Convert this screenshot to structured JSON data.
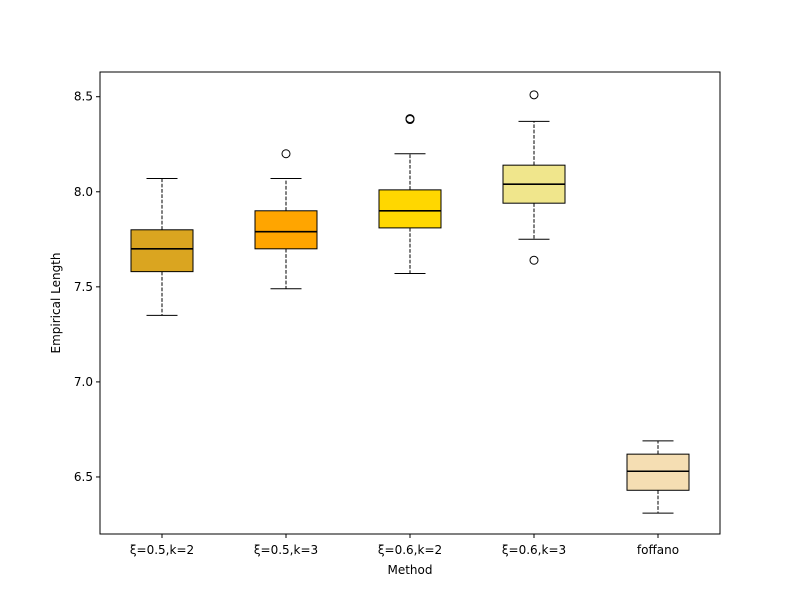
{
  "chart_data": {
    "type": "box",
    "title": "",
    "xlabel": "Method",
    "ylabel": "Empirical Length",
    "ylim": [
      6.2,
      8.63
    ],
    "yticks": [
      6.5,
      7.0,
      7.5,
      8.0,
      8.5
    ],
    "ytick_labels": [
      "6.5",
      "7.0",
      "7.5",
      "8.0",
      "8.5"
    ],
    "categories": [
      "ξ=0.5,k=2",
      "ξ=0.5,k=3",
      "ξ=0.6,k=2",
      "ξ=0.6,k=3",
      "foffano"
    ],
    "boxes": [
      {
        "name": "ξ=0.5,k=2",
        "whislo": 7.35,
        "q1": 7.58,
        "med": 7.7,
        "q3": 7.8,
        "whishi": 8.07,
        "fliers": [],
        "color": "#daa520"
      },
      {
        "name": "ξ=0.5,k=3",
        "whislo": 7.49,
        "q1": 7.7,
        "med": 7.79,
        "q3": 7.9,
        "whishi": 8.07,
        "fliers": [
          8.2
        ],
        "color": "#ffa500"
      },
      {
        "name": "ξ=0.6,k=2",
        "whislo": 7.57,
        "q1": 7.81,
        "med": 7.9,
        "q3": 8.01,
        "whishi": 8.2,
        "fliers": [
          8.38,
          8.385
        ],
        "color": "#ffd700"
      },
      {
        "name": "ξ=0.6,k=3",
        "whislo": 7.75,
        "q1": 7.94,
        "med": 8.04,
        "q3": 8.14,
        "whishi": 8.37,
        "fliers": [
          8.51,
          7.64
        ],
        "color": "#f0e68c"
      },
      {
        "name": "foffano",
        "whislo": 6.31,
        "q1": 6.43,
        "med": 6.53,
        "q3": 6.62,
        "whishi": 6.69,
        "fliers": [],
        "color": "#f5deb3"
      }
    ]
  }
}
